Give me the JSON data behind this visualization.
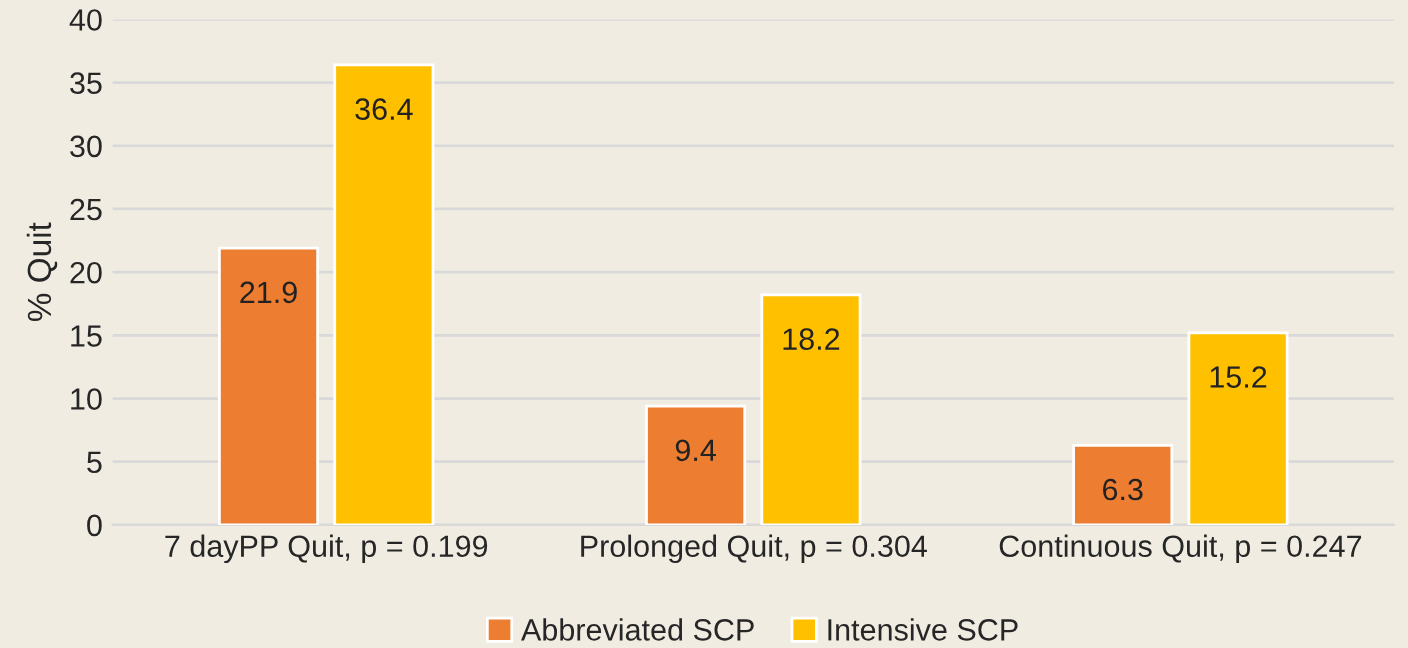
{
  "chart_data": {
    "type": "bar",
    "ylabel": "% Quit",
    "categories": [
      "7 dayPP Quit, p = 0.199",
      "Prolonged Quit, p = 0.304",
      "Continuous Quit, p = 0.247"
    ],
    "series": [
      {
        "name": "Abbreviated SCP",
        "color": "#ed7d31",
        "values": [
          21.9,
          9.4,
          6.3
        ]
      },
      {
        "name": "Intensive SCP",
        "color": "#ffc000",
        "values": [
          36.4,
          18.2,
          15.2
        ]
      }
    ],
    "ylim": [
      0,
      40
    ],
    "yticks": [
      0,
      5,
      10,
      15,
      20,
      25,
      30,
      35,
      40
    ],
    "grid": "y",
    "legend": "bottom",
    "data_labels": true
  }
}
